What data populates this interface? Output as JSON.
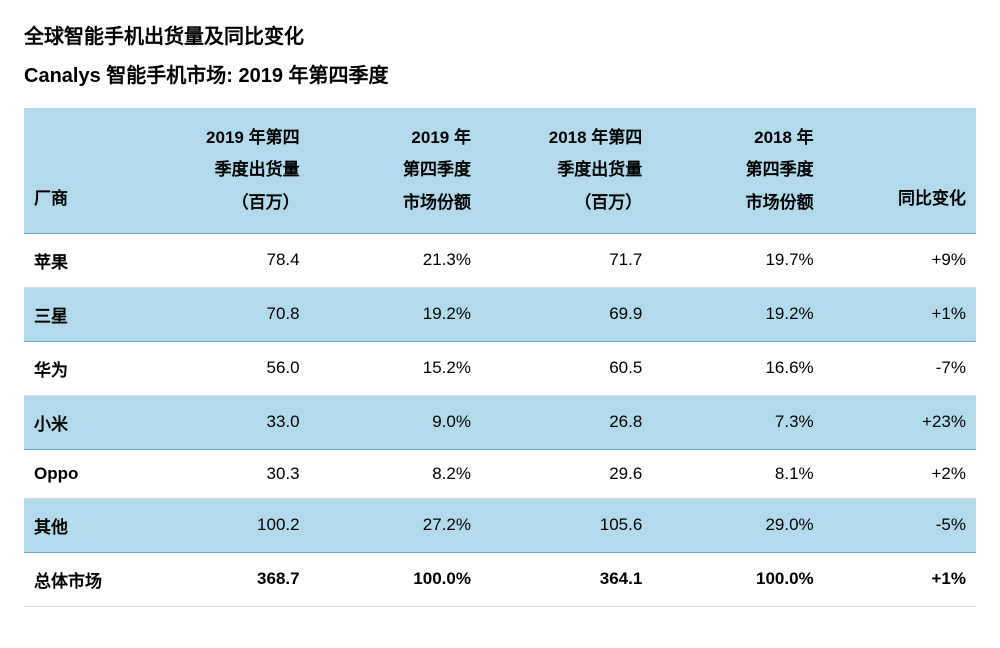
{
  "header": {
    "title": "全球智能手机出货量及同比变化",
    "subtitle": "Canalys 智能手机市场: 2019 年第四季度"
  },
  "table": {
    "type": "table",
    "background_color": "#ffffff",
    "stripe_color": "#b1dbec",
    "border_color": "#d9d9d9",
    "stripe_border_color": "#6ca8c2",
    "font_family": "Microsoft YaHei",
    "header_fontsize": 17,
    "cell_fontsize": 17,
    "columns": [
      {
        "label": "厂商",
        "align": "left"
      },
      {
        "label": "2019 年第四\n季度出货量\n（百万）",
        "align": "right"
      },
      {
        "label": "2019 年\n第四季度\n市场份额",
        "align": "right"
      },
      {
        "label": "2018 年第四\n季度出货量\n（百万）",
        "align": "right"
      },
      {
        "label": "2018 年\n第四季度\n市场份额",
        "align": "right"
      },
      {
        "label": "同比变化",
        "align": "right"
      }
    ],
    "rows": [
      {
        "cells": [
          "苹果",
          "78.4",
          "21.3%",
          "71.7",
          "19.7%",
          "+9%"
        ],
        "stripe": false,
        "bold": false
      },
      {
        "cells": [
          "三星",
          "70.8",
          "19.2%",
          "69.9",
          "19.2%",
          "+1%"
        ],
        "stripe": true,
        "bold": false
      },
      {
        "cells": [
          "华为",
          "56.0",
          "15.2%",
          "60.5",
          "16.6%",
          "-7%"
        ],
        "stripe": false,
        "bold": false
      },
      {
        "cells": [
          "小米",
          "33.0",
          "9.0%",
          "26.8",
          "7.3%",
          "+23%"
        ],
        "stripe": true,
        "bold": false
      },
      {
        "cells": [
          "Oppo",
          "30.3",
          "8.2%",
          "29.6",
          "8.1%",
          "+2%"
        ],
        "stripe": false,
        "bold": false
      },
      {
        "cells": [
          "其他",
          "100.2",
          "27.2%",
          "105.6",
          "29.0%",
          "-5%"
        ],
        "stripe": true,
        "bold": false
      },
      {
        "cells": [
          "总体市场",
          "368.7",
          "100.0%",
          "364.1",
          "100.0%",
          "+1%"
        ],
        "stripe": false,
        "bold": true
      }
    ]
  }
}
